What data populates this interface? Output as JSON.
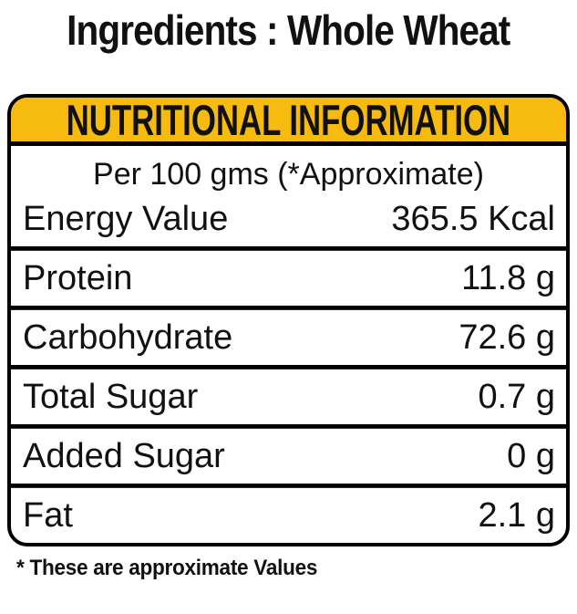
{
  "page": {
    "title": "Ingredients : Whole Wheat",
    "footnote": "* These are approximate Values"
  },
  "panel": {
    "header": "NUTRITIONAL INFORMATION",
    "serving_note": "Per 100 gms (*Approximate)",
    "rows": [
      {
        "name": "Energy Value",
        "value": "365.5 Kcal"
      },
      {
        "name": "Protein",
        "value": "11.8 g"
      },
      {
        "name": "Carbohydrate",
        "value": "72.6 g"
      },
      {
        "name": "Total Sugar",
        "value": "0.7 g"
      },
      {
        "name": "Added Sugar",
        "value": "0 g"
      },
      {
        "name": "Fat",
        "value": "2.1 g"
      }
    ],
    "colors": {
      "header_bg": "#F7BA0E",
      "border": "#000000",
      "text": "#111111",
      "background": "#FFFFFF"
    }
  }
}
